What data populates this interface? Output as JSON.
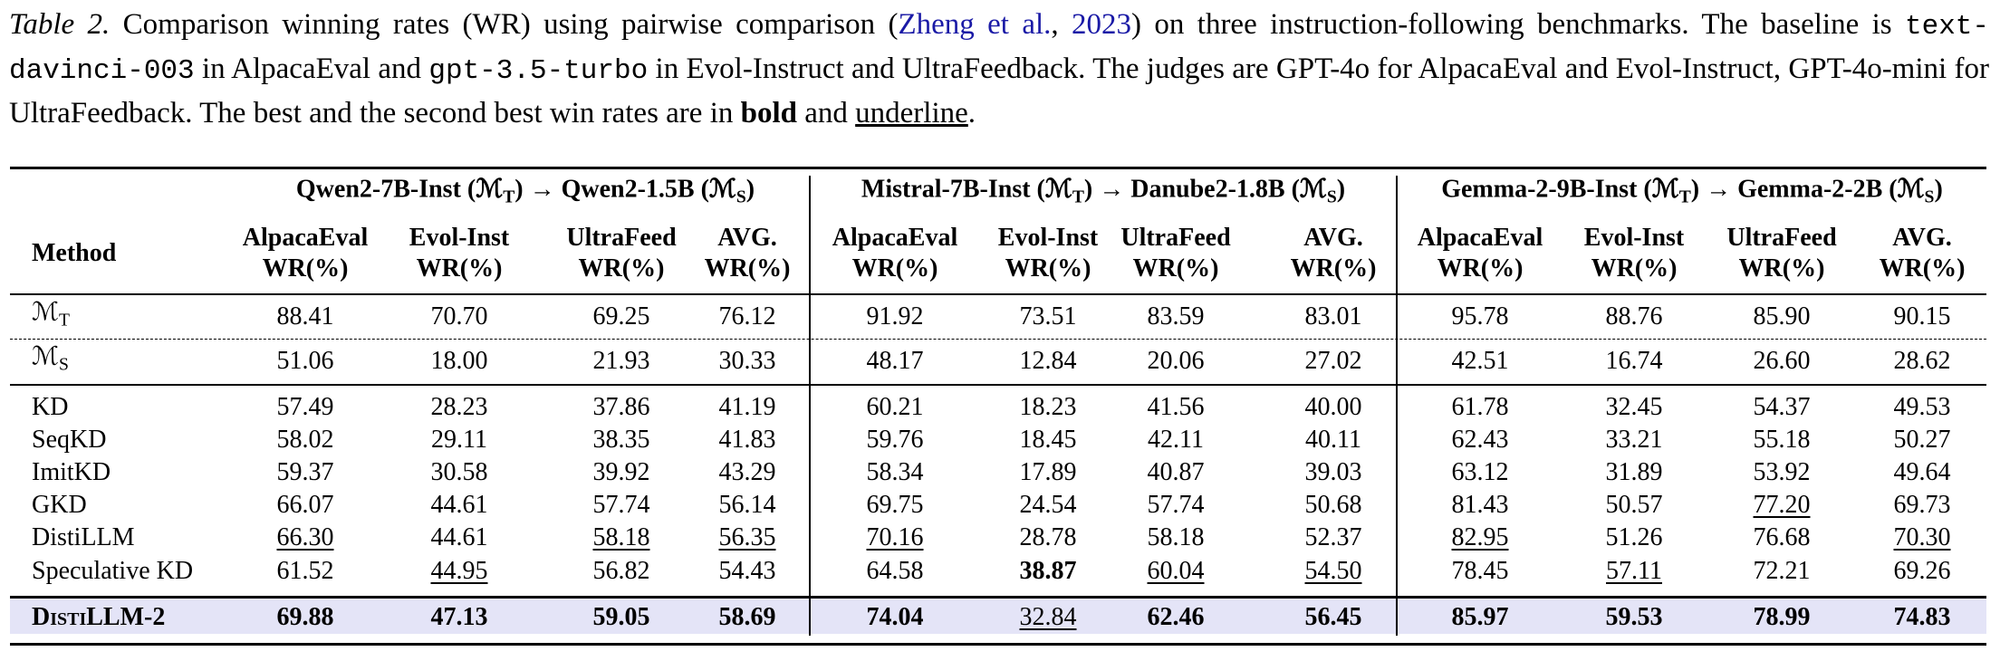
{
  "caption": [
    {
      "text": "Table 2.",
      "style": "italic"
    },
    {
      "text": " Comparison winning rates (WR) using pairwise comparison ("
    },
    {
      "text": "Zheng et al.",
      "style": "link"
    },
    {
      "text": ", "
    },
    {
      "text": "2023",
      "style": "link"
    },
    {
      "text": ") on three instruction-following benchmarks. The baseline is "
    },
    {
      "text": "text-davinci-003",
      "style": "code"
    },
    {
      "text": " in AlpacaEval and "
    },
    {
      "text": "gpt-3.5-turbo",
      "style": "code"
    },
    {
      "text": " in Evol-Instruct and UltraFeedback. The judges are GPT-4o for AlpacaEval and Evol-Instruct, GPT-4o-mini for UltraFeedback. The best and the second best win rates are in "
    },
    {
      "text": "bold",
      "style": "bold"
    },
    {
      "text": " and "
    },
    {
      "text": "underline",
      "style": "underline"
    },
    {
      "text": "."
    }
  ],
  "table": {
    "method_header": "Method",
    "groups": [
      {
        "header": [
          {
            "text": "Qwen2-7B-Inst ("
          },
          {
            "text": "ℳ"
          },
          {
            "text": "T",
            "sub": true
          },
          {
            "text": ") → Qwen2-1.5B ("
          },
          {
            "text": "ℳ"
          },
          {
            "text": "S",
            "sub": true
          },
          {
            "text": ")"
          }
        ]
      },
      {
        "header": [
          {
            "text": "Mistral-7B-Inst ("
          },
          {
            "text": "ℳ"
          },
          {
            "text": "T",
            "sub": true
          },
          {
            "text": ") → Danube2-1.8B ("
          },
          {
            "text": "ℳ"
          },
          {
            "text": "S",
            "sub": true
          },
          {
            "text": ")"
          }
        ]
      },
      {
        "header": [
          {
            "text": "Gemma-2-9B-Inst ("
          },
          {
            "text": "ℳ"
          },
          {
            "text": "T",
            "sub": true
          },
          {
            "text": ") → Gemma-2-2B ("
          },
          {
            "text": "ℳ"
          },
          {
            "text": "S",
            "sub": true
          },
          {
            "text": ")"
          }
        ]
      }
    ],
    "columns": [
      "AlpacaEval",
      "Evol-Inst",
      "UltraFeed",
      "AVG."
    ],
    "column_unit": "WR(%)",
    "rows": [
      {
        "method": [
          {
            "text": "ℳ"
          },
          {
            "text": "T",
            "sub": true
          }
        ],
        "values": [
          "88.41",
          "70.70",
          "69.25",
          "76.12",
          "91.92",
          "73.51",
          "83.59",
          "83.01",
          "95.78",
          "88.76",
          "85.90",
          "90.15"
        ],
        "bold": [],
        "underline": []
      },
      {
        "method": [
          {
            "text": "ℳ"
          },
          {
            "text": "S",
            "sub": true
          }
        ],
        "values": [
          "51.06",
          "18.00",
          "21.93",
          "30.33",
          "48.17",
          "12.84",
          "20.06",
          "27.02",
          "42.51",
          "16.74",
          "26.60",
          "28.62"
        ],
        "bold": [],
        "underline": []
      },
      {
        "method": [
          {
            "text": "KD"
          }
        ],
        "values": [
          "57.49",
          "28.23",
          "37.86",
          "41.19",
          "60.21",
          "18.23",
          "41.56",
          "40.00",
          "61.78",
          "32.45",
          "54.37",
          "49.53"
        ],
        "bold": [],
        "underline": []
      },
      {
        "method": [
          {
            "text": "SeqKD"
          }
        ],
        "values": [
          "58.02",
          "29.11",
          "38.35",
          "41.83",
          "59.76",
          "18.45",
          "42.11",
          "40.11",
          "62.43",
          "33.21",
          "55.18",
          "50.27"
        ],
        "bold": [],
        "underline": []
      },
      {
        "method": [
          {
            "text": "ImitKD"
          }
        ],
        "values": [
          "59.37",
          "30.58",
          "39.92",
          "43.29",
          "58.34",
          "17.89",
          "40.87",
          "39.03",
          "63.12",
          "31.89",
          "53.92",
          "49.64"
        ],
        "bold": [],
        "underline": []
      },
      {
        "method": [
          {
            "text": "GKD"
          }
        ],
        "values": [
          "66.07",
          "44.61",
          "57.74",
          "56.14",
          "69.75",
          "24.54",
          "57.74",
          "50.68",
          "81.43",
          "50.57",
          "77.20",
          "69.73"
        ],
        "bold": [],
        "underline": [
          10
        ]
      },
      {
        "method": [
          {
            "text": "DistiLLM"
          }
        ],
        "values": [
          "66.30",
          "44.61",
          "58.18",
          "56.35",
          "70.16",
          "28.78",
          "58.18",
          "52.37",
          "82.95",
          "51.26",
          "76.68",
          "70.30"
        ],
        "bold": [],
        "underline": [
          0,
          2,
          3,
          4,
          8,
          11
        ]
      },
      {
        "method": [
          {
            "text": "Speculative KD"
          }
        ],
        "values": [
          "61.52",
          "44.95",
          "56.82",
          "54.43",
          "64.58",
          "38.87",
          "60.04",
          "54.50",
          "78.45",
          "57.11",
          "72.21",
          "69.26"
        ],
        "bold": [
          5
        ],
        "underline": [
          1,
          6,
          7,
          9
        ]
      },
      {
        "method": [
          {
            "text": "DistiLLM-2",
            "smallcaps": true
          }
        ],
        "values": [
          "69.88",
          "47.13",
          "59.05",
          "58.69",
          "74.04",
          "32.84",
          "62.46",
          "56.45",
          "85.97",
          "59.53",
          "78.99",
          "74.83"
        ],
        "bold": [
          0,
          1,
          2,
          3,
          4,
          6,
          7,
          8,
          9,
          10,
          11
        ],
        "underline": [
          5
        ],
        "highlight": true
      }
    ]
  }
}
